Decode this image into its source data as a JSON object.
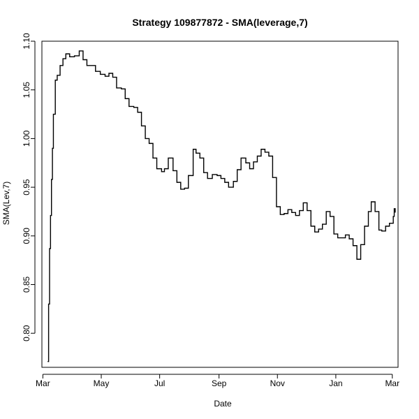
{
  "chart_data": {
    "type": "line",
    "title": "Strategy 109877872 - SMA(leverage,7)",
    "xlabel": "Date",
    "ylabel": "SMA(Lev,7)",
    "line_color": "#000000",
    "ylim": [
      0.765,
      1.1
    ],
    "xlim": [
      "2013-02-28",
      "2014-03-07"
    ],
    "y_ticks": [
      0.8,
      0.85,
      0.9,
      0.95,
      1.0,
      1.05,
      1.1
    ],
    "y_tick_labels": [
      "0.80",
      "0.85",
      "0.90",
      "0.95",
      "1.00",
      "1.05",
      "1.10"
    ],
    "x_ticks": [
      {
        "date": "2013-03-01",
        "label": "Mar"
      },
      {
        "date": "2013-05-01",
        "label": "May"
      },
      {
        "date": "2013-07-01",
        "label": "Jul"
      },
      {
        "date": "2013-09-01",
        "label": "Sep"
      },
      {
        "date": "2013-11-01",
        "label": "Nov"
      },
      {
        "date": "2014-01-01",
        "label": "Jan"
      },
      {
        "date": "2014-03-01",
        "label": "Mar"
      }
    ],
    "grid": false,
    "series": [
      {
        "x": [
          "2013-03-06",
          "2013-03-07",
          "2013-03-08",
          "2013-03-09",
          "2013-03-10",
          "2013-03-11",
          "2013-03-12",
          "2013-03-14",
          "2013-03-16",
          "2013-03-19",
          "2013-03-22",
          "2013-03-25",
          "2013-03-29",
          "2013-04-03",
          "2013-04-08",
          "2013-04-12",
          "2013-04-16",
          "2013-04-20",
          "2013-04-25",
          "2013-04-30",
          "2013-05-05",
          "2013-05-09",
          "2013-05-13",
          "2013-05-17",
          "2013-05-22",
          "2013-05-26",
          "2013-05-30",
          "2013-06-04",
          "2013-06-08",
          "2013-06-12",
          "2013-06-16",
          "2013-06-20",
          "2013-06-24",
          "2013-06-28",
          "2013-07-03",
          "2013-07-06",
          "2013-07-10",
          "2013-07-15",
          "2013-07-19",
          "2013-07-23",
          "2013-07-27",
          "2013-07-31",
          "2013-08-05",
          "2013-08-08",
          "2013-08-12",
          "2013-08-16",
          "2013-08-20",
          "2013-08-25",
          "2013-08-30",
          "2013-09-03",
          "2013-09-07",
          "2013-09-11",
          "2013-09-16",
          "2013-09-20",
          "2013-09-24",
          "2013-09-29",
          "2013-10-03",
          "2013-10-07",
          "2013-10-11",
          "2013-10-15",
          "2013-10-19",
          "2013-10-23",
          "2013-10-27",
          "2013-10-31",
          "2013-11-04",
          "2013-11-08",
          "2013-11-12",
          "2013-11-16",
          "2013-11-20",
          "2013-11-24",
          "2013-11-28",
          "2013-12-02",
          "2013-12-06",
          "2013-12-10",
          "2013-12-14",
          "2013-12-18",
          "2013-12-22",
          "2013-12-26",
          "2013-12-30",
          "2014-01-03",
          "2014-01-07",
          "2014-01-11",
          "2014-01-15",
          "2014-01-19",
          "2014-01-23",
          "2014-01-27",
          "2014-01-31",
          "2014-02-04",
          "2014-02-07",
          "2014-02-11",
          "2014-02-15",
          "2014-02-18",
          "2014-02-22",
          "2014-02-26",
          "2014-03-02",
          "2014-03-03",
          "2014-03-04"
        ],
        "y": [
          0.771,
          0.83,
          0.887,
          0.921,
          0.958,
          0.99,
          1.025,
          1.06,
          1.065,
          1.075,
          1.082,
          1.087,
          1.084,
          1.085,
          1.09,
          1.081,
          1.075,
          1.075,
          1.069,
          1.066,
          1.064,
          1.067,
          1.063,
          1.052,
          1.051,
          1.041,
          1.033,
          1.032,
          1.027,
          1.013,
          1.0,
          0.995,
          0.98,
          0.969,
          0.966,
          0.969,
          0.98,
          0.967,
          0.955,
          0.948,
          0.949,
          0.962,
          0.989,
          0.985,
          0.98,
          0.965,
          0.959,
          0.963,
          0.962,
          0.959,
          0.955,
          0.95,
          0.956,
          0.968,
          0.98,
          0.975,
          0.969,
          0.976,
          0.982,
          0.989,
          0.986,
          0.982,
          0.96,
          0.93,
          0.922,
          0.923,
          0.927,
          0.924,
          0.921,
          0.926,
          0.934,
          0.926,
          0.91,
          0.904,
          0.907,
          0.912,
          0.925,
          0.92,
          0.902,
          0.898,
          0.898,
          0.901,
          0.897,
          0.89,
          0.876,
          0.891,
          0.91,
          0.925,
          0.935,
          0.925,
          0.906,
          0.905,
          0.91,
          0.913,
          0.92,
          0.928,
          0.924
        ]
      }
    ]
  }
}
